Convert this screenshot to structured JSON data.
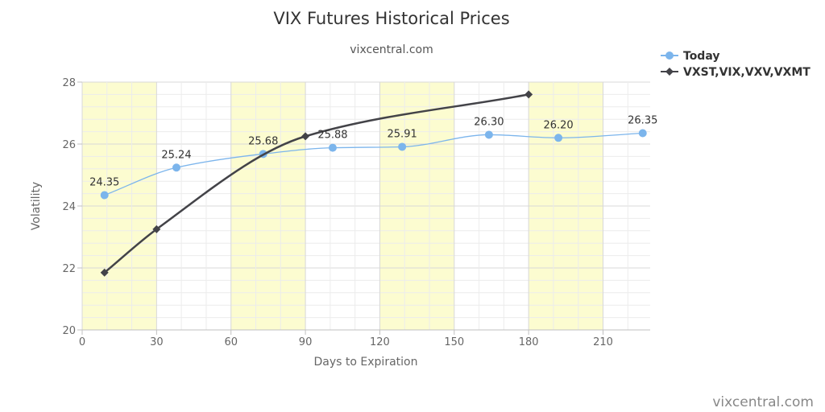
{
  "chart_data": {
    "type": "line",
    "title": "VIX Futures Historical Prices",
    "subtitle": "vixcentral.com",
    "xlabel": "Days to Expiration",
    "ylabel": "Volatility",
    "xlim": [
      0,
      229
    ],
    "ylim": [
      20,
      28
    ],
    "x_ticks": [
      0,
      30,
      60,
      90,
      120,
      150,
      180,
      210
    ],
    "y_ticks": [
      20,
      22,
      24,
      26,
      28
    ],
    "grid": true,
    "shaded_bands": [
      [
        0,
        30
      ],
      [
        60,
        90
      ],
      [
        120,
        150
      ],
      [
        180,
        210
      ]
    ],
    "band_color": "#fcfcd0",
    "legend_position": "top-right",
    "credit": "vixcentral.com",
    "series": [
      {
        "name": "Today",
        "color": "#7cb5ec",
        "marker": "circle",
        "x": [
          9,
          38,
          73,
          101,
          129,
          164,
          192,
          226
        ],
        "values": [
          24.35,
          25.24,
          25.68,
          25.88,
          25.91,
          26.3,
          26.2,
          26.35
        ],
        "labels": [
          "24.35",
          "25.24",
          "25.68",
          "25.88",
          "25.91",
          "26.30",
          "26.20",
          "26.35"
        ]
      },
      {
        "name": "VXST,VIX,VXV,VXMT",
        "color": "#434348",
        "marker": "diamond",
        "x": [
          9,
          30,
          90,
          180
        ],
        "values": [
          21.85,
          23.25,
          26.25,
          27.6
        ]
      }
    ]
  }
}
